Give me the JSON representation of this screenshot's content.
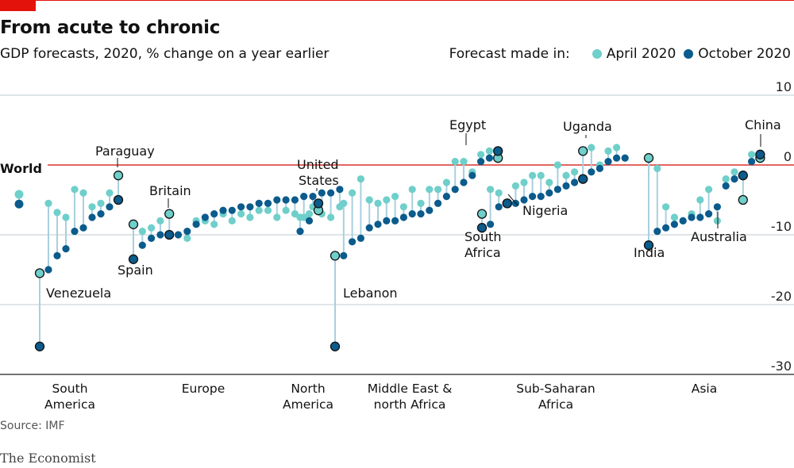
{
  "header": {
    "title": "From acute to chronic",
    "subtitle": "GDP forecasts, 2020, % change on a year earlier"
  },
  "legend": {
    "label": "Forecast made in:",
    "items": [
      {
        "name": "April 2020",
        "color": "#6fcfca"
      },
      {
        "name": "October 2020",
        "color": "#0b5b8c"
      }
    ]
  },
  "footer": {
    "source": "Source: IMF",
    "brand": "The Economist"
  },
  "chart_data": {
    "type": "scatter",
    "title": "From acute to chronic",
    "subtitle": "GDP forecasts, 2020, % change on a year earlier",
    "ylim": [
      -30,
      10
    ],
    "yticks": [
      "10",
      "0",
      "-10",
      "-20",
      "-30"
    ],
    "reference_line": 0,
    "grid": true,
    "legend_position": "top-right",
    "world": {
      "label": "World",
      "april": -4.2,
      "october": -5.6
    },
    "regions": [
      {
        "name": [
          "South",
          "America"
        ],
        "april": [
          -15.5,
          -5.5,
          -6.8,
          -7.5,
          -3.5,
          -4.0,
          -6.0,
          -5.5,
          -4.0,
          -1.5
        ],
        "october": [
          -26.0,
          -15.0,
          -13.0,
          -12.0,
          -9.5,
          -9.0,
          -7.5,
          -7.0,
          -6.0,
          -5.0
        ]
      },
      {
        "name": [
          "Europe"
        ],
        "april": [
          -8.5,
          -9.5,
          -9.0,
          -8.0,
          -7.0,
          -10.0,
          -10.5,
          -8.0,
          -8.0,
          -8.5,
          -7.0,
          -8.0,
          -7.0,
          -7.5,
          -6.5,
          -6.5,
          -7.5,
          -6.5,
          -7.0,
          -7.5,
          -6.0,
          -7.0,
          -7.5,
          -6.0
        ],
        "october": [
          -13.5,
          -11.5,
          -10.5,
          -10.0,
          -10.0,
          -10.0,
          -9.5,
          -8.5,
          -7.5,
          -7.0,
          -6.5,
          -6.5,
          -6.0,
          -6.0,
          -5.5,
          -5.5,
          -5.0,
          -5.0,
          -5.0,
          -4.5,
          -4.5,
          -4.0,
          -4.0,
          -3.5
        ]
      },
      {
        "name": [
          "North",
          "America"
        ],
        "april": [
          -7.5,
          -7.0,
          -6.5
        ],
        "october": [
          -9.5,
          -8.0,
          -5.5
        ]
      },
      {
        "name": [
          "Middle East &",
          "north Africa"
        ],
        "april": [
          -13.0,
          -5.5,
          -4.0,
          -2.0,
          -5.0,
          -5.5,
          -5.0,
          -4.5,
          -6.0,
          -3.5,
          -5.5,
          -3.5,
          -3.5,
          -2.5,
          0.5,
          0.5,
          -1.0,
          1.5,
          2.0,
          1.0
        ],
        "october": [
          -26.0,
          -13.0,
          -11.0,
          -10.5,
          -9.0,
          -8.5,
          -8.0,
          -8.0,
          -7.5,
          -7.0,
          -7.0,
          -6.5,
          -5.5,
          -4.5,
          -3.5,
          -2.5,
          -1.5,
          0.5,
          1.0,
          2.0
        ]
      },
      {
        "name": [
          "Sub-Saharan",
          "Africa"
        ],
        "april": [
          -7.0,
          -3.5,
          -4.0,
          -5.5,
          -3.0,
          -2.5,
          -1.5,
          -1.5,
          -2.5,
          0.0,
          -1.5,
          -1.0,
          2.0,
          2.5,
          0.0,
          2.0,
          2.5,
          1.0
        ],
        "october": [
          -9.0,
          -8.5,
          -6.0,
          -5.5,
          -5.5,
          -5.0,
          -4.5,
          -4.5,
          -4.0,
          -3.5,
          -3.0,
          -2.5,
          -2.0,
          -1.0,
          -0.5,
          0.5,
          1.0,
          1.0
        ]
      },
      {
        "name": [
          "Asia"
        ],
        "april": [
          1.0,
          -0.5,
          -6.0,
          -7.5,
          -8.0,
          -7.0,
          -5.0,
          -3.5,
          -8.0,
          -2.0,
          -1.0,
          -5.0,
          1.5,
          1.0
        ],
        "october": [
          -11.5,
          -9.5,
          -9.0,
          -8.5,
          -8.0,
          -7.5,
          -7.5,
          -7.0,
          -6.0,
          -3.0,
          -2.0,
          -1.5,
          0.5,
          1.5
        ]
      }
    ],
    "annotations": [
      {
        "text": "Venezuela"
      },
      {
        "text": "Paraguay"
      },
      {
        "text": "Spain"
      },
      {
        "text": "Britain"
      },
      {
        "text": "United"
      },
      {
        "text": "States"
      },
      {
        "text": "Lebanon"
      },
      {
        "text": "Egypt"
      },
      {
        "text": "Nigeria"
      },
      {
        "text": "South"
      },
      {
        "text": "Africa"
      },
      {
        "text": "Uganda"
      },
      {
        "text": "India"
      },
      {
        "text": "Australia"
      },
      {
        "text": "China"
      }
    ]
  }
}
